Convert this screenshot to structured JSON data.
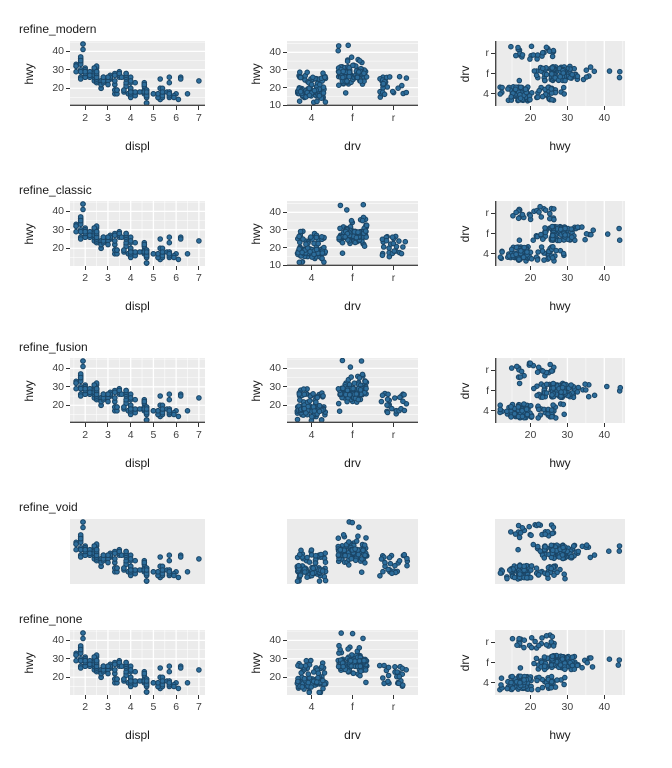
{
  "figure": {
    "rows": [
      {
        "label": "refine_modern",
        "theme": "modern",
        "middle_y_ticks": [
          40,
          30,
          20,
          10
        ]
      },
      {
        "label": "refine_classic",
        "theme": "classic",
        "middle_y_ticks": [
          40,
          30,
          20,
          10
        ]
      },
      {
        "label": "refine_fusion",
        "theme": "fusion",
        "middle_y_ticks": [
          40,
          30,
          20
        ]
      },
      {
        "label": "refine_void",
        "theme": "void",
        "middle_y_ticks": []
      },
      {
        "label": "refine_none",
        "theme": "none",
        "middle_y_ticks": [
          40,
          30,
          20
        ]
      }
    ]
  },
  "colors": {
    "point_fill": "#2d6d9b",
    "point_stroke": "#1a4566",
    "panel_bg": "#ebebeb",
    "grid": "#ffffff",
    "axis_line": "#474747",
    "tick": "#333333",
    "tick_label": "#404040",
    "title": "#1a1a1a"
  },
  "chart_data": {
    "type": "scatter",
    "columns": [
      "displ",
      "hwy",
      "drv"
    ],
    "charts": [
      {
        "geom": "point",
        "x": "displ",
        "y": "hwy",
        "xlabel": "displ",
        "ylabel": "hwy",
        "x_ticks": [
          2,
          3,
          4,
          5,
          6,
          7
        ],
        "y_ticks": [
          40,
          30,
          20
        ],
        "xlim": [
          1.33,
          7.27
        ],
        "ylim": [
          10.4,
          45.6
        ],
        "grid": "horizontal"
      },
      {
        "geom": "jitter",
        "x": "drv",
        "y": "hwy",
        "xlabel": "drv",
        "ylabel": "hwy",
        "x_ticks": [
          "4",
          "f",
          "r"
        ],
        "y_ticks_by_row": true,
        "xlim": [
          0.4,
          3.6
        ],
        "grid": "horizontal"
      },
      {
        "geom": "jitter",
        "x": "hwy",
        "y": "drv",
        "xlabel": "hwy",
        "ylabel": "drv",
        "x_ticks": [
          20,
          30,
          40
        ],
        "y_ticks": [
          "r",
          "f",
          "4"
        ],
        "xlim": [
          10.4,
          45.6
        ],
        "ylim": [
          0.4,
          3.6
        ],
        "grid": "vertical"
      }
    ],
    "points": [
      [
        1.8,
        29,
        "f"
      ],
      [
        1.8,
        29,
        "f"
      ],
      [
        2,
        31,
        "f"
      ],
      [
        2,
        30,
        "f"
      ],
      [
        2.8,
        26,
        "f"
      ],
      [
        2.8,
        26,
        "f"
      ],
      [
        3.1,
        27,
        "f"
      ],
      [
        1.8,
        26,
        "4"
      ],
      [
        1.8,
        25,
        "4"
      ],
      [
        2,
        28,
        "4"
      ],
      [
        2,
        27,
        "4"
      ],
      [
        2.8,
        25,
        "4"
      ],
      [
        2.8,
        25,
        "4"
      ],
      [
        3.1,
        25,
        "4"
      ],
      [
        3.1,
        25,
        "4"
      ],
      [
        2.8,
        24,
        "4"
      ],
      [
        3.1,
        25,
        "4"
      ],
      [
        4.2,
        23,
        "4"
      ],
      [
        5.3,
        20,
        "r"
      ],
      [
        5.3,
        15,
        "r"
      ],
      [
        5.3,
        20,
        "r"
      ],
      [
        5.7,
        17,
        "r"
      ],
      [
        6,
        17,
        "r"
      ],
      [
        5.7,
        26,
        "r"
      ],
      [
        5.7,
        23,
        "r"
      ],
      [
        6.2,
        26,
        "r"
      ],
      [
        6.2,
        25,
        "r"
      ],
      [
        7,
        24,
        "r"
      ],
      [
        5.3,
        14,
        "4"
      ],
      [
        5.3,
        14,
        "4"
      ],
      [
        5.7,
        15,
        "4"
      ],
      [
        6.5,
        17,
        "4"
      ],
      [
        2.4,
        27,
        "f"
      ],
      [
        2.4,
        30,
        "f"
      ],
      [
        3.1,
        26,
        "f"
      ],
      [
        3.5,
        29,
        "f"
      ],
      [
        3.6,
        26,
        "f"
      ],
      [
        2.4,
        24,
        "f"
      ],
      [
        3,
        24,
        "f"
      ],
      [
        3.3,
        22,
        "f"
      ],
      [
        3.3,
        22,
        "f"
      ],
      [
        3.3,
        24,
        "f"
      ],
      [
        3.3,
        24,
        "f"
      ],
      [
        3.3,
        17,
        "f"
      ],
      [
        3.8,
        22,
        "f"
      ],
      [
        3.8,
        21,
        "f"
      ],
      [
        3.8,
        23,
        "f"
      ],
      [
        4,
        23,
        "f"
      ],
      [
        3.7,
        19,
        "4"
      ],
      [
        3.7,
        18,
        "4"
      ],
      [
        3.9,
        17,
        "4"
      ],
      [
        3.9,
        17,
        "4"
      ],
      [
        4.7,
        19,
        "4"
      ],
      [
        4.7,
        19,
        "4"
      ],
      [
        4.7,
        12,
        "4"
      ],
      [
        5.2,
        17,
        "4"
      ],
      [
        5.2,
        15,
        "4"
      ],
      [
        3.9,
        17,
        "4"
      ],
      [
        4.7,
        17,
        "4"
      ],
      [
        4.7,
        12,
        "4"
      ],
      [
        4.7,
        17,
        "4"
      ],
      [
        4.7,
        16,
        "4"
      ],
      [
        4.7,
        18,
        "4"
      ],
      [
        5.2,
        15,
        "4"
      ],
      [
        5.9,
        16,
        "4"
      ],
      [
        4.7,
        17,
        "4"
      ],
      [
        4.7,
        15,
        "4"
      ],
      [
        4.7,
        17,
        "4"
      ],
      [
        4.7,
        17,
        "4"
      ],
      [
        4.7,
        16,
        "4"
      ],
      [
        4.7,
        12,
        "4"
      ],
      [
        5.2,
        17,
        "4"
      ],
      [
        5.7,
        16,
        "4"
      ],
      [
        5.9,
        15,
        "4"
      ],
      [
        4.6,
        17,
        "r"
      ],
      [
        5.4,
        17,
        "r"
      ],
      [
        5.4,
        18,
        "r"
      ],
      [
        4,
        17,
        "4"
      ],
      [
        4,
        19,
        "4"
      ],
      [
        4,
        17,
        "4"
      ],
      [
        4,
        19,
        "4"
      ],
      [
        4.6,
        19,
        "4"
      ],
      [
        5,
        17,
        "4"
      ],
      [
        4.2,
        17,
        "4"
      ],
      [
        4.2,
        16,
        "4"
      ],
      [
        4.6,
        18,
        "4"
      ],
      [
        4.6,
        18,
        "4"
      ],
      [
        4.6,
        17,
        "4"
      ],
      [
        4.6,
        19,
        "4"
      ],
      [
        5.4,
        15,
        "4"
      ],
      [
        3.8,
        26,
        "r"
      ],
      [
        3.8,
        25,
        "r"
      ],
      [
        4,
        26,
        "r"
      ],
      [
        4,
        24,
        "r"
      ],
      [
        4.6,
        21,
        "r"
      ],
      [
        4.6,
        22,
        "r"
      ],
      [
        4.6,
        23,
        "r"
      ],
      [
        4.6,
        22,
        "r"
      ],
      [
        5.4,
        20,
        "r"
      ],
      [
        1.6,
        33,
        "f"
      ],
      [
        1.6,
        32,
        "f"
      ],
      [
        1.6,
        32,
        "f"
      ],
      [
        1.6,
        29,
        "f"
      ],
      [
        1.6,
        32,
        "f"
      ],
      [
        1.8,
        34,
        "f"
      ],
      [
        1.8,
        36,
        "f"
      ],
      [
        1.8,
        36,
        "f"
      ],
      [
        2,
        29,
        "f"
      ],
      [
        2.4,
        26,
        "f"
      ],
      [
        2.4,
        27,
        "f"
      ],
      [
        2.4,
        30,
        "f"
      ],
      [
        2.4,
        31,
        "f"
      ],
      [
        2.5,
        26,
        "f"
      ],
      [
        2.5,
        29,
        "f"
      ],
      [
        3.3,
        28,
        "f"
      ],
      [
        2,
        26,
        "f"
      ],
      [
        2,
        29,
        "f"
      ],
      [
        2,
        28,
        "f"
      ],
      [
        2,
        27,
        "f"
      ],
      [
        2.7,
        24,
        "f"
      ],
      [
        2.7,
        24,
        "f"
      ],
      [
        2.7,
        24,
        "f"
      ],
      [
        3,
        22,
        "4"
      ],
      [
        3.7,
        19,
        "4"
      ],
      [
        4,
        20,
        "4"
      ],
      [
        4.7,
        17,
        "4"
      ],
      [
        4.7,
        12,
        "4"
      ],
      [
        4.7,
        19,
        "4"
      ],
      [
        5.7,
        18,
        "4"
      ],
      [
        6.1,
        14,
        "4"
      ],
      [
        4,
        15,
        "4"
      ],
      [
        4.2,
        18,
        "4"
      ],
      [
        4.4,
        18,
        "4"
      ],
      [
        4.6,
        18,
        "4"
      ],
      [
        5.4,
        17,
        "r"
      ],
      [
        5.4,
        16,
        "r"
      ],
      [
        5.4,
        18,
        "r"
      ],
      [
        4,
        17,
        "4"
      ],
      [
        4,
        17,
        "4"
      ],
      [
        4.6,
        18,
        "4"
      ],
      [
        5,
        17,
        "4"
      ],
      [
        2.4,
        29,
        "f"
      ],
      [
        2.5,
        31,
        "f"
      ],
      [
        2.5,
        32,
        "f"
      ],
      [
        2.5,
        27,
        "f"
      ],
      [
        3.5,
        26,
        "f"
      ],
      [
        3.5,
        27,
        "f"
      ],
      [
        3,
        26,
        "f"
      ],
      [
        3,
        26,
        "f"
      ],
      [
        3.5,
        28,
        "f"
      ],
      [
        3.3,
        19,
        "4"
      ],
      [
        3.3,
        19,
        "4"
      ],
      [
        4,
        20,
        "4"
      ],
      [
        5.6,
        18,
        "4"
      ],
      [
        3.1,
        26,
        "f"
      ],
      [
        3.8,
        26,
        "f"
      ],
      [
        3.8,
        27,
        "f"
      ],
      [
        3.8,
        28,
        "f"
      ],
      [
        3.8,
        28,
        "f"
      ],
      [
        5.3,
        25,
        "f"
      ],
      [
        2.5,
        23,
        "4"
      ],
      [
        2.5,
        24,
        "4"
      ],
      [
        2.5,
        25,
        "4"
      ],
      [
        2.5,
        27,
        "4"
      ],
      [
        2.5,
        25,
        "4"
      ],
      [
        2.5,
        26,
        "4"
      ],
      [
        2.2,
        26,
        "4"
      ],
      [
        2.2,
        29,
        "4"
      ],
      [
        2.5,
        26,
        "4"
      ],
      [
        2.5,
        29,
        "4"
      ],
      [
        2.5,
        26,
        "4"
      ],
      [
        2.5,
        26,
        "4"
      ],
      [
        2.7,
        20,
        "4"
      ],
      [
        2.7,
        20,
        "4"
      ],
      [
        3.4,
        19,
        "4"
      ],
      [
        3.4,
        17,
        "4"
      ],
      [
        4,
        20,
        "4"
      ],
      [
        4.7,
        17,
        "4"
      ],
      [
        2.2,
        26,
        "f"
      ],
      [
        2.2,
        27,
        "f"
      ],
      [
        2.4,
        30,
        "f"
      ],
      [
        2.4,
        31,
        "f"
      ],
      [
        3,
        26,
        "f"
      ],
      [
        3,
        26,
        "f"
      ],
      [
        3.5,
        28,
        "f"
      ],
      [
        2.2,
        26,
        "f"
      ],
      [
        2.2,
        27,
        "f"
      ],
      [
        2.4,
        31,
        "f"
      ],
      [
        2.4,
        31,
        "f"
      ],
      [
        3,
        26,
        "f"
      ],
      [
        3,
        26,
        "f"
      ],
      [
        3.3,
        27,
        "f"
      ],
      [
        1.8,
        30,
        "f"
      ],
      [
        1.8,
        33,
        "f"
      ],
      [
        1.8,
        35,
        "f"
      ],
      [
        1.8,
        37,
        "f"
      ],
      [
        1.8,
        35,
        "f"
      ],
      [
        4.7,
        15,
        "4"
      ],
      [
        5.7,
        18,
        "4"
      ],
      [
        2.7,
        22,
        "4"
      ],
      [
        2.7,
        22,
        "4"
      ],
      [
        2.7,
        22,
        "4"
      ],
      [
        3.4,
        19,
        "4"
      ],
      [
        3.4,
        19,
        "4"
      ],
      [
        4,
        18,
        "4"
      ],
      [
        4.7,
        17,
        "4"
      ],
      [
        4.7,
        16,
        "4"
      ],
      [
        4.7,
        18,
        "4"
      ],
      [
        5.7,
        17,
        "4"
      ],
      [
        2,
        29,
        "f"
      ],
      [
        2,
        26,
        "f"
      ],
      [
        2,
        29,
        "f"
      ],
      [
        2,
        29,
        "f"
      ],
      [
        2.8,
        24,
        "f"
      ],
      [
        1.9,
        44,
        "f"
      ],
      [
        2,
        29,
        "f"
      ],
      [
        2,
        26,
        "f"
      ],
      [
        2,
        29,
        "f"
      ],
      [
        2,
        29,
        "f"
      ],
      [
        2.5,
        29,
        "f"
      ],
      [
        2.5,
        29,
        "f"
      ],
      [
        2.8,
        23,
        "f"
      ],
      [
        2.8,
        24,
        "f"
      ],
      [
        1.9,
        44,
        "f"
      ],
      [
        1.9,
        41,
        "f"
      ],
      [
        2,
        29,
        "f"
      ],
      [
        2,
        26,
        "f"
      ],
      [
        2.5,
        28,
        "f"
      ],
      [
        2.5,
        29,
        "f"
      ],
      [
        1.8,
        29,
        "f"
      ],
      [
        1.8,
        29,
        "f"
      ],
      [
        2,
        28,
        "f"
      ],
      [
        2,
        29,
        "f"
      ],
      [
        2.8,
        26,
        "f"
      ],
      [
        2.8,
        26,
        "f"
      ],
      [
        3.6,
        26,
        "f"
      ]
    ]
  }
}
